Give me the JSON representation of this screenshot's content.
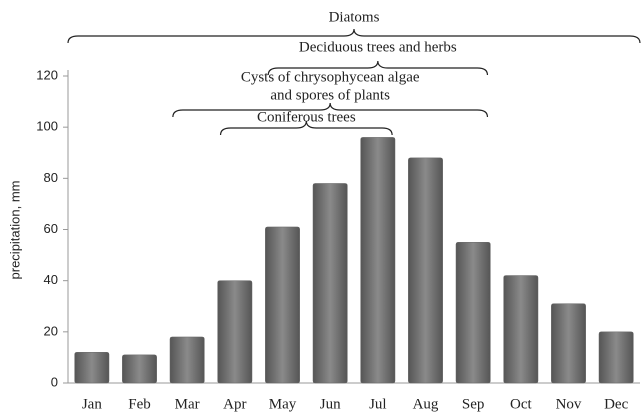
{
  "chart_data": {
    "type": "bar",
    "y_label": "precipitation, mm",
    "categories": [
      "Jan",
      "Feb",
      "Mar",
      "Apr",
      "May",
      "Jun",
      "Jul",
      "Aug",
      "Sep",
      "Oct",
      "Nov",
      "Dec"
    ],
    "values": [
      12,
      11,
      18,
      40,
      61,
      78,
      96,
      88,
      55,
      42,
      31,
      20
    ],
    "color": "#8a8a8a",
    "ylim": [
      0,
      120
    ],
    "yticks": [
      0,
      20,
      40,
      60,
      80,
      100,
      120
    ],
    "annotations": [
      {
        "text": [
          "Diatoms"
        ],
        "start": "Jan",
        "end": "Dec"
      },
      {
        "text": [
          "Deciduous trees and herbs"
        ],
        "start": "May",
        "end": "Sep"
      },
      {
        "text": [
          "Cysts of chrysophycean algae",
          "and spores of plants"
        ],
        "start": "Mar",
        "end": "Sep"
      },
      {
        "text": [
          "Coniferous trees"
        ],
        "start": "Apr",
        "end": "Jul"
      }
    ]
  }
}
